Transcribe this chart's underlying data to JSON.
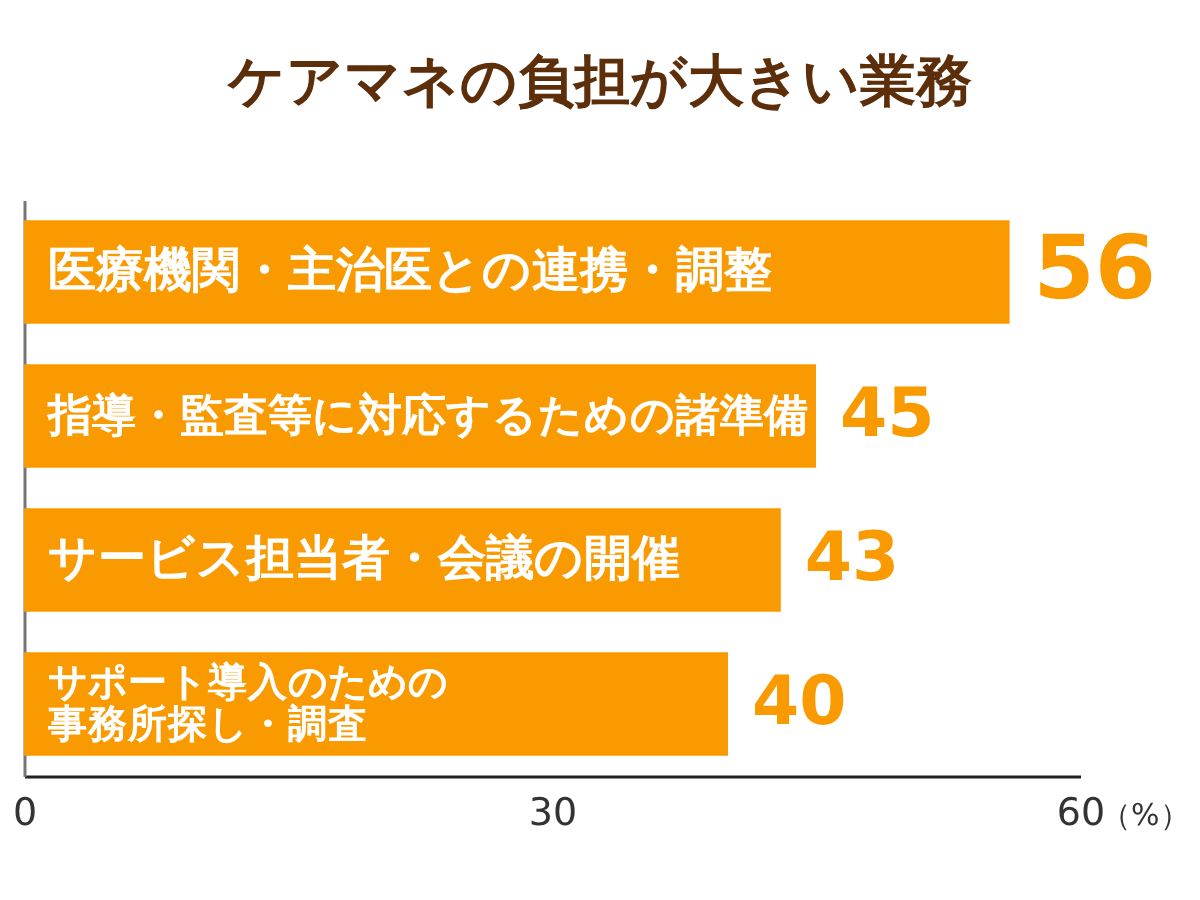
{
  "chart_data": {
    "type": "bar",
    "orientation": "horizontal",
    "title": "ケアマネの負担が大きい業務",
    "xlabel": "（%）",
    "categories": [
      "医療機関・主治医との連携・調整",
      "指導・監査等に対応するための諸準備",
      "サービス担当者・会議の開催",
      "サポート導入のための事務所探し・調査"
    ],
    "values": [
      56,
      45,
      43,
      40
    ],
    "color": "#f99a00",
    "xlim": [
      0,
      60
    ],
    "xticks": [
      0,
      30,
      60
    ],
    "data_labels": true
  }
}
